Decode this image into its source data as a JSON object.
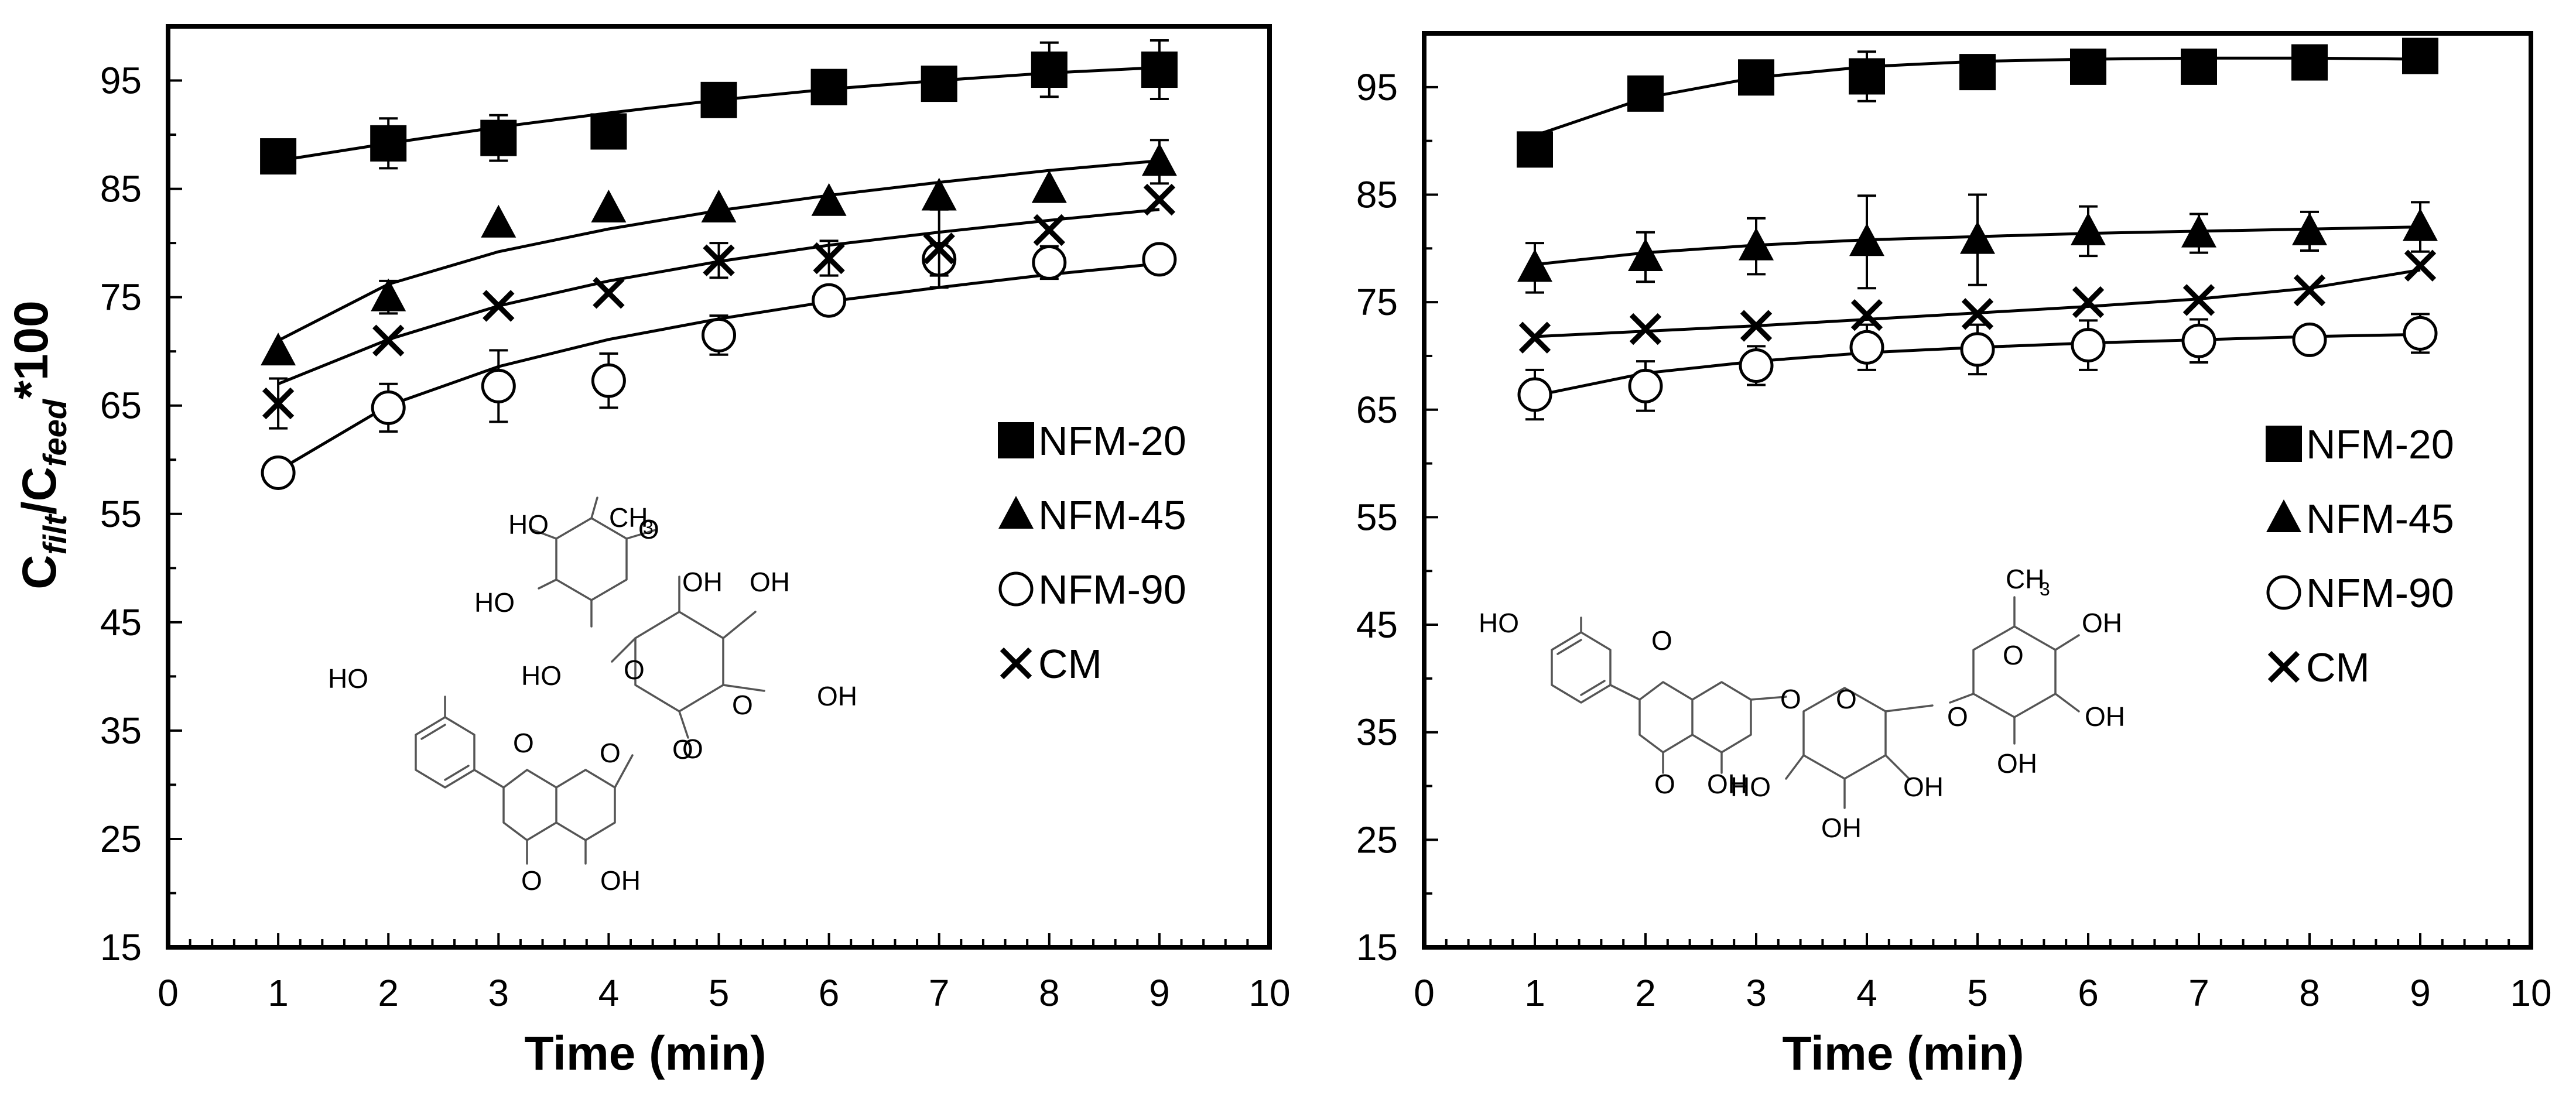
{
  "figure": {
    "y_axis_label": {
      "base": "C",
      "sub1": "filt",
      "slash": "/C",
      "sub2": "feed",
      "suffix": "*100"
    }
  },
  "chart_data": [
    {
      "type": "scatter",
      "title": "",
      "xlabel": "Time (min)",
      "ylabel": "Cfilt/Cfeed*100",
      "xlim": [
        0,
        10
      ],
      "ylim": [
        15,
        100
      ],
      "xticks": [
        0,
        1,
        2,
        3,
        4,
        5,
        6,
        7,
        8,
        9,
        10
      ],
      "yticks": [
        15,
        25,
        35,
        45,
        55,
        65,
        75,
        85,
        95
      ],
      "grid": false,
      "legend_position": "right",
      "x": [
        1,
        2,
        3,
        4,
        5,
        6,
        7,
        8,
        9
      ],
      "series": [
        {
          "name": "NFM-20",
          "marker": "square",
          "values": [
            88,
            89.2,
            89.7,
            90.3,
            93.2,
            94.4,
            94.7,
            96,
            96
          ],
          "errors": [
            0,
            2.3,
            2.1,
            0,
            0,
            0,
            0,
            2.5,
            2.7
          ],
          "trend": [
            87.6,
            89.2,
            90.7,
            92.0,
            93.2,
            94.2,
            95.0,
            95.7,
            96.2
          ]
        },
        {
          "name": "NFM-45",
          "marker": "triangle",
          "values": [
            70,
            75,
            81.8,
            83.2,
            83.2,
            83.8,
            84.3,
            85,
            87.5
          ],
          "errors": [
            0,
            1.5,
            0,
            0,
            0,
            0,
            0,
            0,
            2.0
          ],
          "trend": [
            71.0,
            76.2,
            79.2,
            81.3,
            83.0,
            84.4,
            85.6,
            86.7,
            87.6
          ]
        },
        {
          "name": "NFM-90",
          "marker": "circle",
          "values": [
            58.8,
            64.8,
            66.8,
            67.3,
            71.5,
            74.7,
            78.5,
            78.2,
            78.5
          ],
          "errors": [
            0,
            2.2,
            3.3,
            2.5,
            1.8,
            0,
            1.5,
            1.5,
            0
          ],
          "trend": [
            59.0,
            65.0,
            68.6,
            71.1,
            73.0,
            74.6,
            75.9,
            77.1,
            78.1
          ]
        },
        {
          "name": "CM",
          "marker": "cross",
          "values": [
            65.2,
            71,
            74.2,
            75.4,
            78.4,
            78.6,
            79.5,
            81.2,
            84
          ],
          "errors": [
            2.3,
            0,
            0,
            0,
            1.6,
            1.6,
            3.6,
            0,
            0
          ],
          "trend": [
            67.0,
            71.1,
            74.2,
            76.5,
            78.3,
            79.8,
            81.0,
            82.1,
            83.1
          ]
        }
      ]
    },
    {
      "type": "scatter",
      "title": "",
      "xlabel": "Time (min)",
      "ylabel": "",
      "xlim": [
        0,
        10
      ],
      "ylim": [
        15,
        100
      ],
      "xticks": [
        0,
        1,
        2,
        3,
        4,
        5,
        6,
        7,
        8,
        9,
        10
      ],
      "yticks": [
        15,
        25,
        35,
        45,
        55,
        65,
        75,
        85,
        95
      ],
      "grid": false,
      "legend_position": "right",
      "x": [
        1,
        2,
        3,
        4,
        5,
        6,
        7,
        8,
        9
      ],
      "series": [
        {
          "name": "NFM-20",
          "marker": "square",
          "values": [
            89.2,
            94.4,
            95.9,
            96,
            96.4,
            96.9,
            96.9,
            97.3,
            97.9
          ],
          "errors": [
            0,
            0,
            0,
            2.3,
            0,
            0,
            0,
            0,
            0
          ],
          "trend": [
            90.5,
            94.0,
            95.9,
            96.9,
            97.4,
            97.6,
            97.7,
            97.7,
            97.6
          ]
        },
        {
          "name": "NFM-45",
          "marker": "triangle",
          "values": [
            78.2,
            79.2,
            80.2,
            80.6,
            80.8,
            81.6,
            81.4,
            81.6,
            82
          ],
          "errors": [
            2.3,
            2.3,
            2.6,
            4.3,
            4.2,
            2.3,
            1.8,
            1.8,
            2.3
          ],
          "trend": [
            78.5,
            79.6,
            80.3,
            80.8,
            81.1,
            81.4,
            81.6,
            81.8,
            82.0
          ]
        },
        {
          "name": "NFM-90",
          "marker": "circle",
          "values": [
            66.4,
            67.2,
            69.1,
            70.8,
            70.6,
            71,
            71.4,
            71.5,
            72.1
          ],
          "errors": [
            2.3,
            2.3,
            1.8,
            2.1,
            2.3,
            2.3,
            2.0,
            0,
            1.8
          ],
          "trend": [
            66.3,
            68.4,
            69.5,
            70.3,
            70.8,
            71.2,
            71.5,
            71.8,
            72.0
          ]
        },
        {
          "name": "CM",
          "marker": "cross",
          "values": [
            71.7,
            72.5,
            72.8,
            73.8,
            73.9,
            75,
            75.2,
            76.1,
            78.4
          ],
          "errors": [
            0,
            0,
            0,
            0,
            0,
            0,
            0,
            0,
            0
          ],
          "trend": [
            71.8,
            72.3,
            72.8,
            73.4,
            74.0,
            74.6,
            75.3,
            76.3,
            78.0
          ]
        }
      ]
    }
  ],
  "structures": {
    "left": {
      "labels": [
        "HO",
        "CH",
        "3",
        "HO",
        "HO",
        "OH",
        "OH",
        "OH",
        "O",
        "O",
        "O",
        "O",
        "O",
        "O",
        "HO",
        "O",
        "O",
        "OH"
      ]
    },
    "right": {
      "labels": [
        "HO",
        "O",
        "O",
        "O",
        "OH",
        "O",
        "O",
        "O",
        "CH",
        "3",
        "OH",
        "OH",
        "OH",
        "HO",
        "OH",
        "OH"
      ]
    }
  }
}
